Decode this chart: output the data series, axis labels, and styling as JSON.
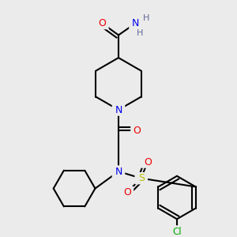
{
  "bg_color": "#ebebeb",
  "atom_colors": {
    "C": "#000000",
    "N": "#0000ee",
    "O": "#ee0000",
    "S": "#bbbb00",
    "Cl": "#00aa00",
    "H": "#666699"
  }
}
